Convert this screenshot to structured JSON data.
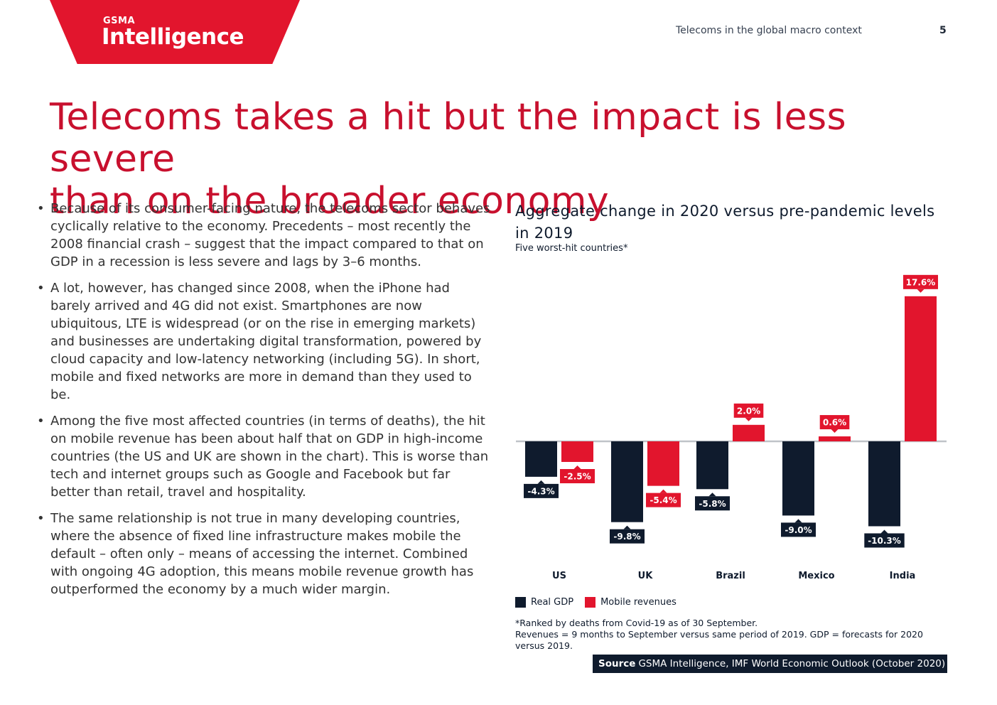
{
  "brand": {
    "top": "GSMA",
    "name": "Intelligence",
    "accent": "#e2152d"
  },
  "header": {
    "section": "Telecoms in the global macro context",
    "page_number": "5"
  },
  "page": {
    "title_line1": "Telecoms takes a hit but the impact is less severe",
    "title_line2": "than on the broader economy",
    "bullets": [
      "Because of its consumer-facing nature, the telecoms sector behaves cyclically relative to the economy. Precedents – most recently the 2008 financial crash – suggest that the impact compared to that on GDP in a recession is less severe and lags by 3–6 months.",
      "A lot, however, has changed since 2008, when the iPhone had barely arrived and 4G did not exist. Smartphones are now ubiquitous, LTE is widespread (or on the rise in emerging markets) and businesses are undertaking digital transformation, powered by cloud capacity and low-latency networking (including 5G). In short, mobile and fixed networks are more in demand than they used to be.",
      "Among the five most affected countries (in terms of deaths), the hit on mobile revenue has been about half that on GDP in high-income countries (the US and UK are shown in the chart). This is worse than tech and internet groups such as Google and Facebook but far better than retail, travel and hospitality.",
      "The same relationship is not true in many developing countries, where the absence of fixed line infrastructure makes mobile the default – often only – means of accessing the internet. Combined with ongoing 4G adoption, this means mobile revenue growth has outperformed the economy by a much wider margin."
    ]
  },
  "chart_data": {
    "type": "bar",
    "title": "Aggregate change in 2020 versus pre-pandemic levels in 2019",
    "subtitle": "Five worst-hit countries*",
    "categories": [
      "US",
      "UK",
      "Brazil",
      "Mexico",
      "India"
    ],
    "series": [
      {
        "name": "Real GDP",
        "color": "#0f1b2d",
        "values": [
          -4.3,
          -9.8,
          -5.8,
          -9.0,
          -10.3
        ],
        "labels": [
          "-4.3%",
          "-9.8%",
          "-5.8%",
          "-9.0%",
          "-10.3%"
        ]
      },
      {
        "name": "Mobile revenues",
        "color": "#e2152d",
        "values": [
          -2.5,
          -5.4,
          2.0,
          0.6,
          17.6
        ],
        "labels": [
          "-2.5%",
          "-5.4%",
          "2.0%",
          "0.6%",
          "17.6%"
        ]
      }
    ],
    "unit": "%",
    "ylim": [
      -10.3,
      17.6
    ],
    "legend": "bottom-left",
    "zero_line_color": "#bfc3c8"
  },
  "notes": {
    "footnote1": "*Ranked by deaths from Covid-19 as of 30 September.",
    "footnote2": "Revenues = 9 months to September versus same period of 2019. GDP = forecasts for 2020 versus 2019.",
    "source_label": "Source",
    "source_text": "GSMA Intelligence, IMF World Economic Outlook (October 2020)"
  }
}
